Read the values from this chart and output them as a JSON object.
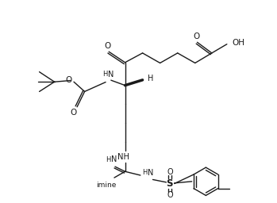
{
  "bg": "#ffffff",
  "lc": "#1a1a1a",
  "lw": 1.0,
  "fs": 7.0,
  "fig_w": 3.49,
  "fig_h": 2.56,
  "dpi": 100,
  "xlim": [
    0,
    10
  ],
  "ylim": [
    0,
    7.5
  ]
}
